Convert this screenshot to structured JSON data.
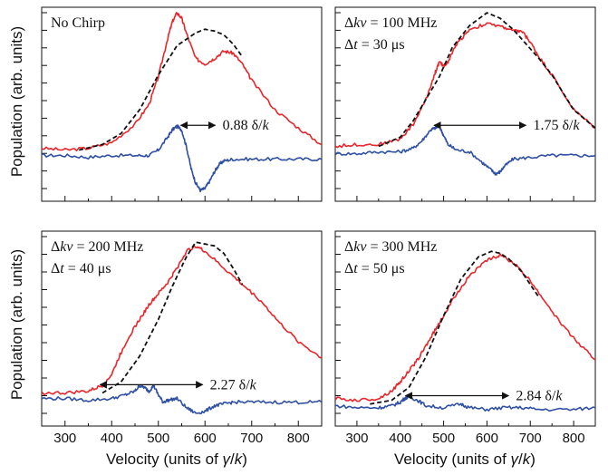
{
  "figure": {
    "ylabel": "Population (arb. units)",
    "xlabel_prefix": "Velocity (units of ",
    "xlabel_gamma": "γ",
    "xlabel_slash": "/",
    "xlabel_k": "k",
    "xlabel_suffix": ")"
  },
  "colors": {
    "red": "#e8262b",
    "blue": "#2e4fa3",
    "dashed": "#111111"
  },
  "chart_data": [
    {
      "type": "line",
      "panel": "top-left",
      "xlim": [
        250,
        850
      ],
      "xticks": [
        300,
        400,
        500,
        600,
        700,
        800
      ],
      "label_line1": "No Chirp",
      "label_line2": "",
      "width_value": "0.88",
      "width_unit": "δ/k",
      "arrow_x": [
        548,
        622
      ],
      "series": [
        {
          "key": "red",
          "style": "solid",
          "x": [
            250,
            300,
            350,
            400,
            450,
            480,
            500,
            520,
            530,
            540,
            550,
            560,
            580,
            600,
            620,
            640,
            660,
            680,
            700,
            750,
            800,
            850
          ],
          "y": [
            0.23,
            0.22,
            0.23,
            0.26,
            0.36,
            0.47,
            0.62,
            0.83,
            0.92,
            0.97,
            0.94,
            0.86,
            0.72,
            0.69,
            0.72,
            0.76,
            0.75,
            0.69,
            0.6,
            0.44,
            0.34,
            0.25
          ]
        },
        {
          "key": "dashed",
          "style": "dashed",
          "x": [
            330,
            380,
            420,
            460,
            500,
            540,
            580,
            600,
            620,
            640,
            660,
            680
          ],
          "y": [
            0.22,
            0.25,
            0.31,
            0.44,
            0.63,
            0.79,
            0.86,
            0.88,
            0.87,
            0.85,
            0.8,
            0.73
          ]
        },
        {
          "key": "blue",
          "style": "solid",
          "x": [
            250,
            300,
            350,
            400,
            450,
            480,
            500,
            520,
            530,
            540,
            550,
            560,
            570,
            580,
            590,
            600,
            610,
            620,
            630,
            640,
            660,
            700,
            750,
            800,
            850
          ],
          "y": [
            0.19,
            0.19,
            0.18,
            0.19,
            0.19,
            0.19,
            0.22,
            0.29,
            0.33,
            0.35,
            0.33,
            0.24,
            0.12,
            0.04,
            0.0,
            0.01,
            0.05,
            0.1,
            0.14,
            0.16,
            0.17,
            0.17,
            0.17,
            0.17,
            0.17
          ]
        }
      ]
    },
    {
      "type": "line",
      "panel": "top-right",
      "xlim": [
        250,
        850
      ],
      "xticks": [
        300,
        400,
        500,
        600,
        700,
        800
      ],
      "label_line1": "Δkv = 100 MHz",
      "label_line2": "Δt = 30 μs",
      "width_value": "1.75",
      "width_unit": "δ/k",
      "arrow_x": [
        478,
        690
      ],
      "series": [
        {
          "key": "red",
          "style": "solid",
          "x": [
            250,
            300,
            350,
            400,
            430,
            460,
            480,
            490,
            500,
            510,
            530,
            560,
            600,
            640,
            660,
            680,
            700,
            720,
            750,
            800,
            850
          ],
          "y": [
            0.24,
            0.25,
            0.25,
            0.28,
            0.36,
            0.5,
            0.64,
            0.7,
            0.68,
            0.7,
            0.8,
            0.88,
            0.91,
            0.89,
            0.87,
            0.87,
            0.81,
            0.73,
            0.63,
            0.44,
            0.34
          ]
        },
        {
          "key": "dashed",
          "style": "dashed",
          "x": [
            350,
            400,
            430,
            460,
            490,
            520,
            560,
            600,
            630,
            660,
            690,
            720,
            750,
            800,
            850
          ],
          "y": [
            0.24,
            0.29,
            0.38,
            0.5,
            0.62,
            0.78,
            0.9,
            0.97,
            0.94,
            0.88,
            0.8,
            0.72,
            0.63,
            0.44,
            0.34
          ]
        },
        {
          "key": "blue",
          "style": "solid",
          "x": [
            250,
            300,
            350,
            400,
            430,
            450,
            470,
            480,
            490,
            500,
            510,
            530,
            560,
            590,
            610,
            620,
            630,
            640,
            660,
            700,
            750,
            800,
            850
          ],
          "y": [
            0.2,
            0.2,
            0.21,
            0.21,
            0.23,
            0.27,
            0.33,
            0.34,
            0.35,
            0.3,
            0.25,
            0.22,
            0.21,
            0.15,
            0.11,
            0.09,
            0.1,
            0.13,
            0.17,
            0.18,
            0.19,
            0.19,
            0.19
          ]
        }
      ]
    },
    {
      "type": "line",
      "panel": "bottom-left",
      "xlim": [
        250,
        850
      ],
      "xticks": [
        300,
        400,
        500,
        600,
        700,
        800
      ],
      "label_line1": "Δkv = 200 MHz",
      "label_line2": "Δt = 40 μs",
      "width_value": "2.27",
      "width_unit": "δ/k",
      "arrow_x": [
        375,
        595
      ],
      "series": [
        {
          "key": "red",
          "style": "solid",
          "x": [
            250,
            300,
            350,
            380,
            400,
            420,
            440,
            460,
            480,
            500,
            520,
            540,
            560,
            580,
            600,
            640,
            680,
            720,
            760,
            800,
            850
          ],
          "y": [
            0.12,
            0.12,
            0.13,
            0.16,
            0.22,
            0.34,
            0.44,
            0.52,
            0.6,
            0.66,
            0.72,
            0.8,
            0.89,
            0.92,
            0.89,
            0.8,
            0.71,
            0.62,
            0.5,
            0.4,
            0.31
          ]
        },
        {
          "key": "dashed",
          "style": "dashed",
          "x": [
            380,
            420,
            460,
            500,
            530,
            560,
            580,
            600,
            620,
            640,
            660,
            680
          ],
          "y": [
            0.12,
            0.18,
            0.32,
            0.52,
            0.7,
            0.86,
            0.94,
            0.93,
            0.92,
            0.88,
            0.8,
            0.71
          ]
        },
        {
          "key": "blue",
          "style": "solid",
          "x": [
            250,
            300,
            350,
            400,
            430,
            450,
            460,
            470,
            480,
            490,
            500,
            510,
            520,
            540,
            560,
            580,
            600,
            620,
            640,
            660,
            700,
            750,
            800,
            850
          ],
          "y": [
            0.09,
            0.09,
            0.08,
            0.09,
            0.11,
            0.13,
            0.16,
            0.15,
            0.13,
            0.16,
            0.11,
            0.07,
            0.08,
            0.09,
            0.04,
            0.01,
            0.02,
            0.05,
            0.06,
            0.07,
            0.07,
            0.07,
            0.07,
            0.07
          ]
        }
      ]
    },
    {
      "type": "line",
      "panel": "bottom-right",
      "xlim": [
        250,
        850
      ],
      "xticks": [
        300,
        400,
        500,
        600,
        700,
        800
      ],
      "label_line1": "Δkv = 300 MHz",
      "label_line2": "Δt = 50 μs",
      "width_value": "2.84",
      "width_unit": "δ/k",
      "arrow_x": [
        412,
        650
      ],
      "series": [
        {
          "key": "red",
          "style": "solid",
          "x": [
            250,
            300,
            350,
            380,
            400,
            420,
            440,
            460,
            480,
            500,
            530,
            560,
            600,
            630,
            660,
            700,
            740,
            780,
            820,
            850
          ],
          "y": [
            0.09,
            0.08,
            0.09,
            0.13,
            0.18,
            0.24,
            0.3,
            0.38,
            0.46,
            0.54,
            0.66,
            0.76,
            0.84,
            0.87,
            0.83,
            0.73,
            0.6,
            0.47,
            0.37,
            0.3
          ]
        },
        {
          "key": "dashed",
          "style": "dashed",
          "x": [
            330,
            380,
            420,
            460,
            500,
            540,
            580,
            610,
            630,
            650,
            680,
            720
          ],
          "y": [
            0.06,
            0.08,
            0.15,
            0.32,
            0.54,
            0.74,
            0.86,
            0.89,
            0.88,
            0.85,
            0.78,
            0.64
          ]
        },
        {
          "key": "blue",
          "style": "solid",
          "x": [
            250,
            300,
            350,
            380,
            400,
            410,
            420,
            440,
            460,
            500,
            540,
            560,
            600,
            640,
            680,
            720,
            800,
            850
          ],
          "y": [
            0.05,
            0.04,
            0.04,
            0.05,
            0.07,
            0.09,
            0.1,
            0.08,
            0.05,
            0.04,
            0.06,
            0.04,
            0.03,
            0.04,
            0.04,
            0.03,
            0.03,
            0.04
          ]
        }
      ]
    }
  ]
}
